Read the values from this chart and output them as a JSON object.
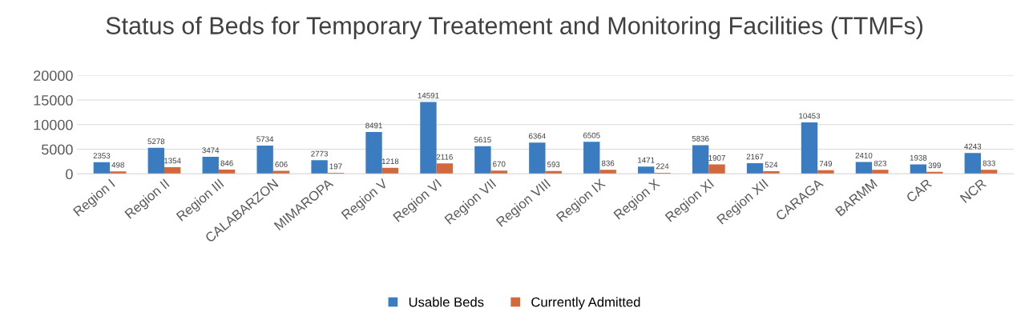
{
  "chart_data": {
    "type": "bar",
    "title": "Status of Beds for Temporary Treatement and Monitoring Facilities (TTMFs)",
    "categories": [
      "Region I",
      "Region II",
      "Region III",
      "CALABARZON",
      "MIMAROPA",
      "Region V",
      "Region VI",
      "Region VII",
      "Region VIII",
      "Region IX",
      "Region X",
      "Region XI",
      "Region XII",
      "CARAGA",
      "BARMM",
      "CAR",
      "NCR"
    ],
    "series": [
      {
        "name": "Usable Beds",
        "color": "#3b7cc0",
        "values": [
          2353,
          5278,
          3474,
          5734,
          2773,
          8491,
          14591,
          5615,
          6364,
          6505,
          1471,
          5836,
          2167,
          10453,
          2410,
          1938,
          4243
        ]
      },
      {
        "name": "Currently Admitted",
        "color": "#d2693c",
        "values": [
          498,
          1354,
          846,
          606,
          197,
          1218,
          2116,
          670,
          593,
          836,
          224,
          1907,
          524,
          749,
          823,
          399,
          833
        ]
      }
    ],
    "ylim": [
      0,
      20000
    ],
    "yticks": [
      0,
      5000,
      10000,
      15000,
      20000
    ],
    "grid": "y",
    "legend": "bottom",
    "data_labels": true
  }
}
